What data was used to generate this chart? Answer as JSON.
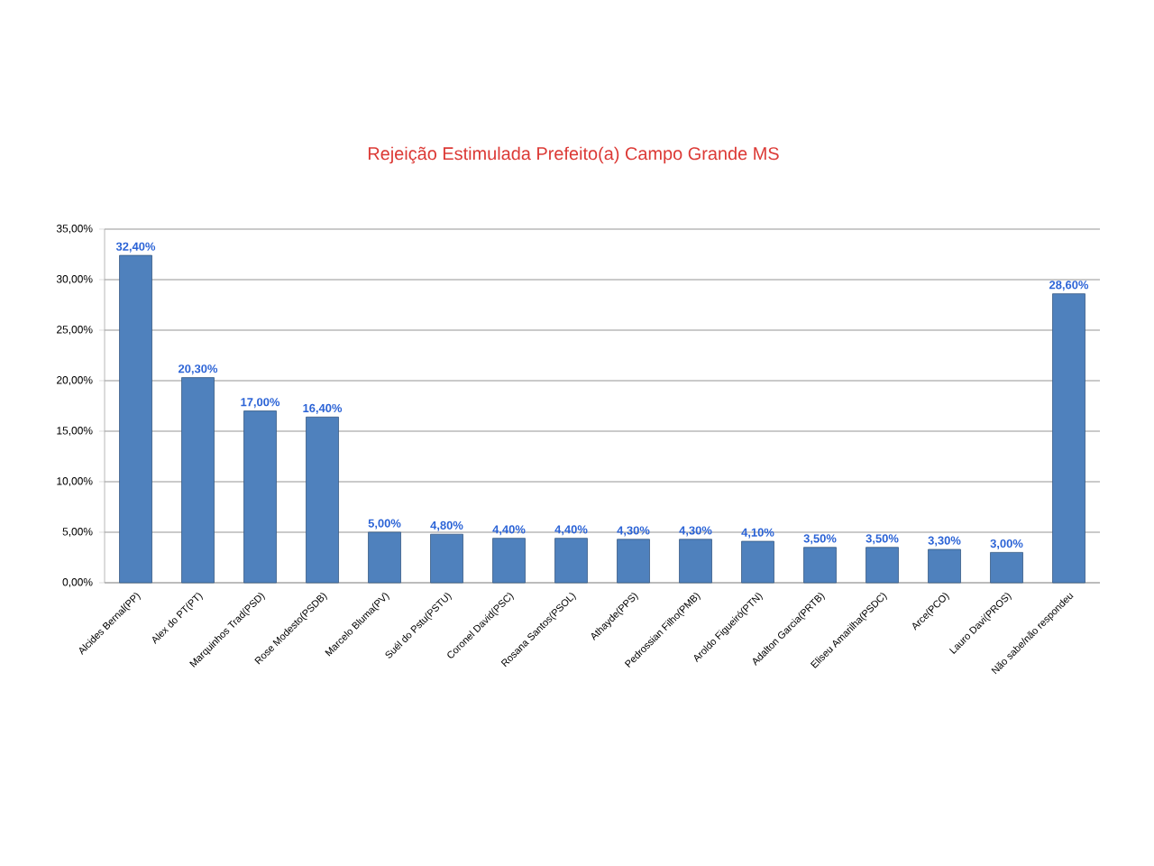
{
  "chart_data": {
    "type": "bar",
    "title": "Rejeição Estimulada Prefeito(a) Campo Grande MS",
    "categories": [
      "Alcides Bernal(PP)",
      "Alex do PT(PT)",
      "Marquinhos Trad(PSD)",
      "Rose Modesto(PSDB)",
      "Marcelo Bluma(PV)",
      "Suél do Pstu(PSTU)",
      "Coronel David(PSC)",
      "Rosana Santos(PSOL)",
      "Athayde(PPS)",
      "Pedrossian Filho(PMB)",
      "Aroldo Figueiró(PTN)",
      "Adalton Garcia(PRTB)",
      "Eliseu Amarilha(PSDC)",
      "Arce(PCO)",
      "Lauro Davi(PROS)",
      "Não sabe/não respondeu"
    ],
    "values": [
      32.4,
      20.3,
      17.0,
      16.4,
      5.0,
      4.8,
      4.4,
      4.4,
      4.3,
      4.3,
      4.1,
      3.5,
      3.5,
      3.3,
      3.0,
      28.6
    ],
    "value_labels": [
      "32,40%",
      "20,30%",
      "17,00%",
      "16,40%",
      "5,00%",
      "4,80%",
      "4,40%",
      "4,40%",
      "4,30%",
      "4,30%",
      "4,10%",
      "3,50%",
      "3,50%",
      "3,30%",
      "3,00%",
      "28,60%"
    ],
    "color": "#4f81bd",
    "ylim": [
      0,
      35
    ],
    "yticks": [
      {
        "value": 0,
        "label": "0,00%"
      },
      {
        "value": 5,
        "label": "5,00%"
      },
      {
        "value": 10,
        "label": "10,00%"
      },
      {
        "value": 15,
        "label": "15,00%"
      },
      {
        "value": 20,
        "label": "20,00%"
      },
      {
        "value": 25,
        "label": "25,00%"
      },
      {
        "value": 30,
        "label": "30,00%"
      },
      {
        "value": 35,
        "label": "35,00%"
      }
    ],
    "grid": "y"
  }
}
